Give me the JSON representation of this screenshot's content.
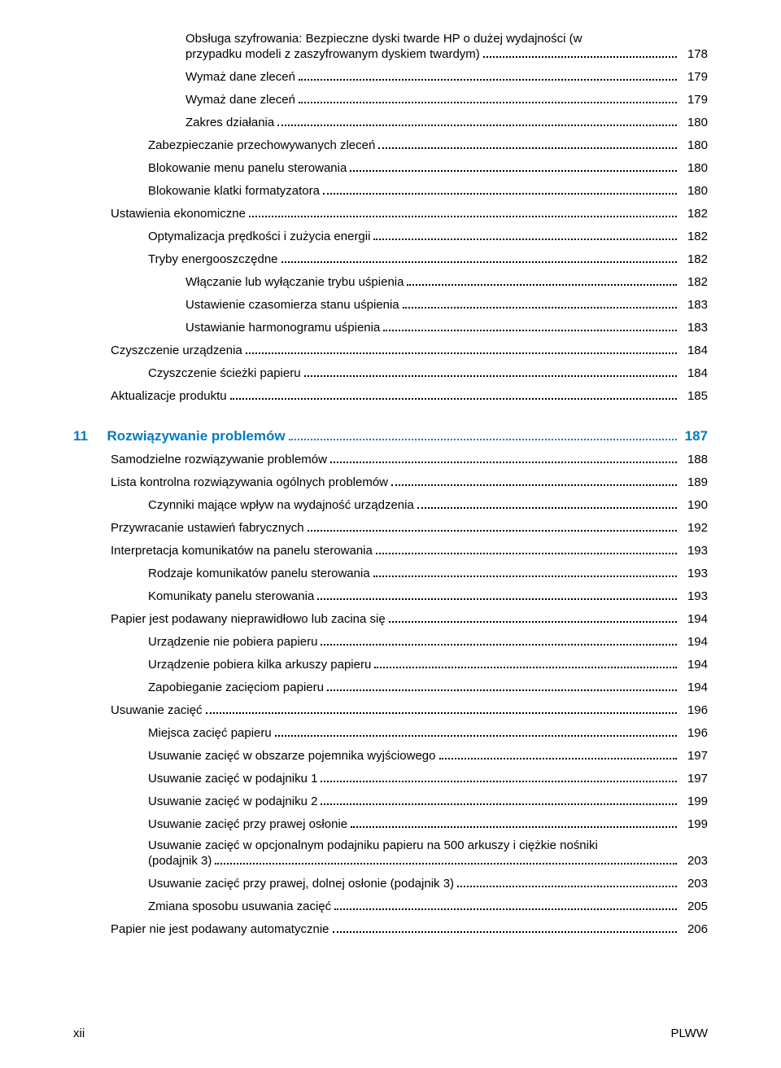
{
  "toc": [
    {
      "lvl": 4,
      "wrap": true,
      "label": "Obsługa szyfrowania: Bezpieczne dyski twarde HP o dużej wydajności (w przypadku modeli z zaszyfrowanym dyskiem twardym)",
      "page": "178"
    },
    {
      "lvl": 4,
      "label": "Wymaż dane zleceń",
      "page": "179"
    },
    {
      "lvl": 4,
      "label": "Wymaż dane zleceń",
      "page": "179"
    },
    {
      "lvl": 4,
      "label": "Zakres działania",
      "page": "180"
    },
    {
      "lvl": 3,
      "label": "Zabezpieczanie przechowywanych zleceń",
      "page": "180"
    },
    {
      "lvl": 3,
      "label": "Blokowanie menu panelu sterowania",
      "page": "180"
    },
    {
      "lvl": 3,
      "label": "Blokowanie klatki formatyzatora",
      "page": "180"
    },
    {
      "lvl": 2,
      "label": "Ustawienia ekonomiczne",
      "page": "182"
    },
    {
      "lvl": 3,
      "label": "Optymalizacja prędkości i zużycia energii",
      "page": "182"
    },
    {
      "lvl": 3,
      "label": "Tryby energooszczędne",
      "page": "182"
    },
    {
      "lvl": 4,
      "label": "Włączanie lub wyłączanie trybu uśpienia",
      "page": "182"
    },
    {
      "lvl": 4,
      "label": "Ustawienie czasomierza stanu uśpienia",
      "page": "183"
    },
    {
      "lvl": 4,
      "label": "Ustawianie harmonogramu uśpienia",
      "page": "183"
    },
    {
      "lvl": 2,
      "label": "Czyszczenie urządzenia",
      "page": "184"
    },
    {
      "lvl": 3,
      "label": "Czyszczenie ścieżki papieru",
      "page": "184"
    },
    {
      "lvl": 2,
      "label": "Aktualizacje produktu",
      "page": "185"
    },
    {
      "gap": true
    },
    {
      "chapter": true,
      "num": "11",
      "label": "Rozwiązywanie problemów",
      "page": "187"
    },
    {
      "lvl": 2,
      "label": "Samodzielne rozwiązywanie problemów",
      "page": "188"
    },
    {
      "lvl": 2,
      "label": "Lista kontrolna rozwiązywania ogólnych problemów",
      "page": "189"
    },
    {
      "lvl": 3,
      "label": "Czynniki mające wpływ na wydajność urządzenia",
      "page": "190"
    },
    {
      "lvl": 2,
      "label": "Przywracanie ustawień fabrycznych",
      "page": "192"
    },
    {
      "lvl": 2,
      "label": "Interpretacja komunikatów na panelu sterowania",
      "page": "193"
    },
    {
      "lvl": 3,
      "label": "Rodzaje komunikatów panelu sterowania",
      "page": "193"
    },
    {
      "lvl": 3,
      "label": "Komunikaty panelu sterowania",
      "page": "193"
    },
    {
      "lvl": 2,
      "label": "Papier jest podawany nieprawidłowo lub zacina się",
      "page": "194"
    },
    {
      "lvl": 3,
      "label": "Urządzenie nie pobiera papieru",
      "page": "194"
    },
    {
      "lvl": 3,
      "label": "Urządzenie pobiera kilka arkuszy papieru",
      "page": "194"
    },
    {
      "lvl": 3,
      "label": "Zapobieganie zacięciom papieru",
      "page": "194"
    },
    {
      "lvl": 2,
      "label": "Usuwanie zacięć",
      "page": "196"
    },
    {
      "lvl": 3,
      "label": "Miejsca zacięć papieru",
      "page": "196"
    },
    {
      "lvl": 3,
      "label": "Usuwanie zacięć w obszarze pojemnika wyjściowego",
      "page": "197"
    },
    {
      "lvl": 3,
      "label": "Usuwanie zacięć w podajniku 1",
      "page": "197"
    },
    {
      "lvl": 3,
      "label": "Usuwanie zacięć w podajniku 2",
      "page": "199"
    },
    {
      "lvl": 3,
      "label": "Usuwanie zacięć przy prawej osłonie",
      "page": "199"
    },
    {
      "lvl": 3,
      "wrap": true,
      "label": "Usuwanie zacięć w opcjonalnym podajniku papieru na 500 arkuszy i ciężkie nośniki (podajnik 3)",
      "page": "203"
    },
    {
      "lvl": 3,
      "label": "Usuwanie zacięć przy prawej, dolnej osłonie (podajnik 3)",
      "page": "203"
    },
    {
      "lvl": 3,
      "label": "Zmiana sposobu usuwania zacięć",
      "page": "205"
    },
    {
      "lvl": 2,
      "label": "Papier nie jest podawany automatycznie",
      "page": "206"
    }
  ],
  "footer": {
    "left": "xii",
    "right": "PLWW"
  }
}
